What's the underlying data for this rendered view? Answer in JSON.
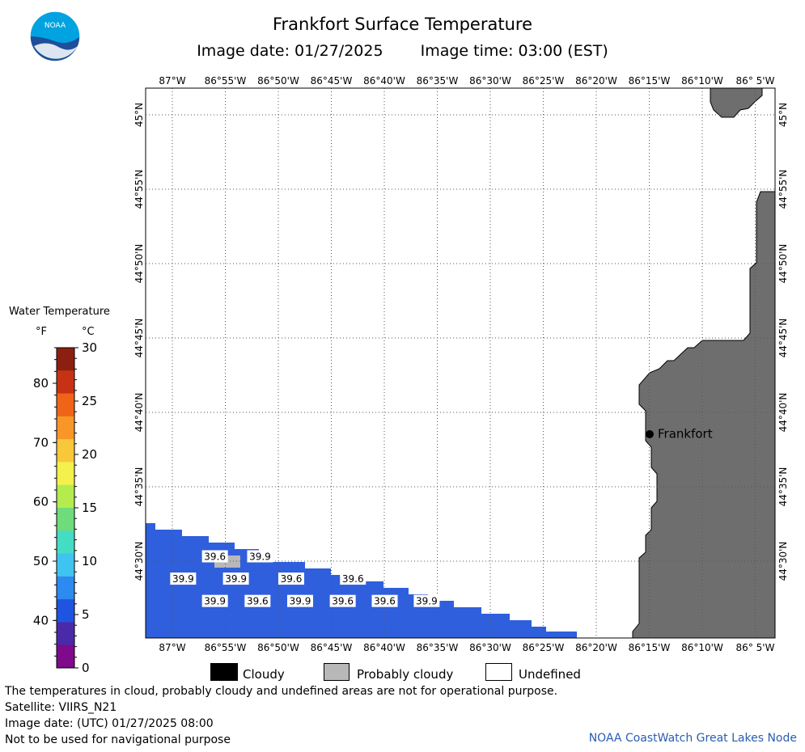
{
  "header": {
    "title": "Frankfort Surface Temperature",
    "image_date": "Image date: 01/27/2025",
    "image_time": "Image time: 03:00 (EST)"
  },
  "logo": {
    "text": "NOAA",
    "colors": {
      "top": "#00a3e0",
      "bottom": "#1d4f9a"
    }
  },
  "map": {
    "lon_labels": [
      "87°W",
      "86°55'W",
      "86°50'W",
      "86°45'W",
      "86°40'W",
      "86°35'W",
      "86°30'W",
      "86°25'W",
      "86°20'W",
      "86°15'W",
      "86°10'W",
      "86° 5'W"
    ],
    "lat_labels": [
      "45°N",
      "44°55'N",
      "44°50'N",
      "44°45'N",
      "44°40'N",
      "44°35'N",
      "44°30'N"
    ],
    "land_color": "#6e6e6e",
    "water_color": "#2f5fdc",
    "probably_cloudy_color": "#b8b8b8",
    "city": {
      "name": "Frankfort"
    },
    "temperature_labels": [
      {
        "value": "39.6",
        "lon": -86.933,
        "lat": 44.505
      },
      {
        "value": "39.9",
        "lon": -86.862,
        "lat": 44.505
      },
      {
        "value": "39.9",
        "lon": -86.983,
        "lat": 44.48
      },
      {
        "value": "39.9",
        "lon": -86.9,
        "lat": 44.48
      },
      {
        "value": "39.6",
        "lon": -86.813,
        "lat": 44.48
      },
      {
        "value": "39.6",
        "lon": -86.716,
        "lat": 44.48
      },
      {
        "value": "39.9",
        "lon": -86.933,
        "lat": 44.455
      },
      {
        "value": "39.6",
        "lon": -86.866,
        "lat": 44.455
      },
      {
        "value": "39.9",
        "lon": -86.799,
        "lat": 44.455
      },
      {
        "value": "39.6",
        "lon": -86.732,
        "lat": 44.455
      },
      {
        "value": "39.6",
        "lon": -86.666,
        "lat": 44.455
      },
      {
        "value": "39.9",
        "lon": -86.6,
        "lat": 44.455
      }
    ]
  },
  "color_scale": {
    "title": "Water Temperature",
    "unit_f": "°F",
    "unit_c": "°C",
    "f_ticks": [
      "80",
      "70",
      "60",
      "50",
      "40"
    ],
    "c_ticks": [
      "30",
      "25",
      "20",
      "15",
      "10",
      "5",
      "0"
    ],
    "colors": [
      "#7f0a8c",
      "#4a2aa8",
      "#1f54e0",
      "#2d8af0",
      "#3fc4f0",
      "#45dcc4",
      "#6edc7a",
      "#b4ec4e",
      "#f4f04c",
      "#f8c83a",
      "#f89628",
      "#f06418",
      "#c83214",
      "#8c2010"
    ]
  },
  "legend": {
    "cloudy": "Cloudy",
    "probably_cloudy": "Probably cloudy",
    "undefined": "Undefined"
  },
  "footer": {
    "note": "The temperatures in cloud, probably cloudy and undefined areas are not for operational purpose.",
    "satellite": "Satellite: VIIRS_N21",
    "utc_date": "Image date: (UTC) 01/27/2025  08:00",
    "nav": "Not to be used for navigational purpose",
    "credit": "NOAA CoastWatch Great Lakes Node"
  }
}
